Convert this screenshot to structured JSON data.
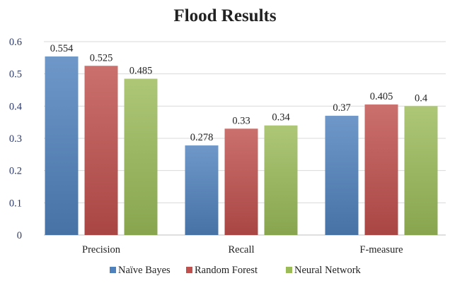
{
  "chart_data": {
    "type": "bar",
    "title": "Flood Results",
    "xlabel": "",
    "ylabel": "",
    "categories": [
      "Precision",
      "Recall",
      "F-measure"
    ],
    "series": [
      {
        "name": "Naïve Bayes",
        "values": [
          0.554,
          0.278,
          0.37
        ],
        "labels": [
          "0.554",
          "0.278",
          "0.37"
        ],
        "color": "#4f81bd"
      },
      {
        "name": "Random Forest",
        "values": [
          0.525,
          0.33,
          0.405
        ],
        "labels": [
          "0.525",
          "0.33",
          "0.405"
        ],
        "color": "#c0504d"
      },
      {
        "name": "Neural Network",
        "values": [
          0.485,
          0.34,
          0.4
        ],
        "labels": [
          "0.485",
          "0.34",
          "0.4"
        ],
        "color": "#9bbb59"
      }
    ],
    "ylim": [
      0,
      0.6
    ],
    "yticks": [
      0,
      0.1,
      0.2,
      0.3,
      0.4,
      0.5,
      0.6
    ],
    "ytick_labels": [
      "0",
      "0.1",
      "0.2",
      "0.3",
      "0.4",
      "0.5",
      "0.6"
    ],
    "grid": true,
    "legend_position": "bottom"
  }
}
